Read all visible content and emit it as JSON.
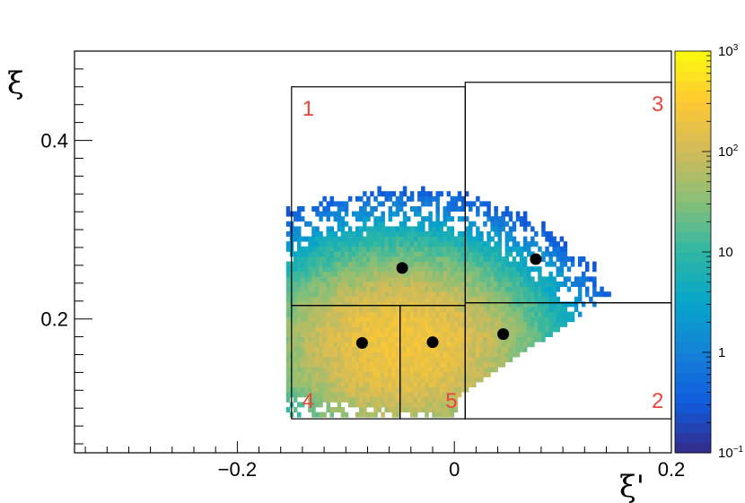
{
  "chart_data": {
    "type": "heatmap",
    "xlabel": "ξ'",
    "ylabel": "ξ",
    "xlim": [
      -0.35,
      0.2
    ],
    "ylim": [
      0.05,
      0.5
    ],
    "x_ticks": [
      {
        "value": -0.2,
        "label": "−0.2"
      },
      {
        "value": 0,
        "label": "0"
      },
      {
        "value": 0.2,
        "label": "0.2"
      }
    ],
    "y_ticks": [
      {
        "value": 0.2,
        "label": "0.2"
      },
      {
        "value": 0.4,
        "label": "0.4"
      }
    ],
    "z_scale": "log",
    "zlim": [
      0.1,
      1000
    ],
    "colorbar_ticks": [
      {
        "value": 0.1,
        "base": "10",
        "exp": "−1"
      },
      {
        "value": 1,
        "base": "1",
        "exp": ""
      },
      {
        "value": 10,
        "base": "10",
        "exp": ""
      },
      {
        "value": 100,
        "base": "10",
        "exp": "2"
      },
      {
        "value": 1000,
        "base": "10",
        "exp": "3"
      }
    ],
    "colormap": [
      "#352a87",
      "#0f5cdd",
      "#1481d6",
      "#06a4ca",
      "#2eb7a4",
      "#87bf77",
      "#d1bb59",
      "#fec832",
      "#f9fb0e"
    ],
    "distribution": {
      "x_left_edge": -0.15,
      "peak": [
        -0.05,
        0.17
      ],
      "bottom_edge": 0.09,
      "top_edge": 0.46
    },
    "regions": [
      {
        "label": "1",
        "x": [
          -0.15,
          0.01
        ],
        "y": [
          0.215,
          0.46
        ]
      },
      {
        "label": "2",
        "x": [
          0.01,
          0.2
        ],
        "y": [
          0.088,
          0.218
        ]
      },
      {
        "label": "3",
        "x": [
          0.01,
          0.2
        ],
        "y": [
          0.218,
          0.465
        ]
      },
      {
        "label": "4",
        "x": [
          -0.15,
          -0.05
        ],
        "y": [
          0.088,
          0.215
        ]
      },
      {
        "label": "5",
        "x": [
          -0.05,
          0.01
        ],
        "y": [
          0.088,
          0.215
        ]
      }
    ],
    "centroids": [
      {
        "x": -0.048,
        "y": 0.257
      },
      {
        "x": 0.075,
        "y": 0.267
      },
      {
        "x": -0.085,
        "y": 0.173
      },
      {
        "x": -0.02,
        "y": 0.174
      },
      {
        "x": 0.045,
        "y": 0.183
      }
    ]
  }
}
